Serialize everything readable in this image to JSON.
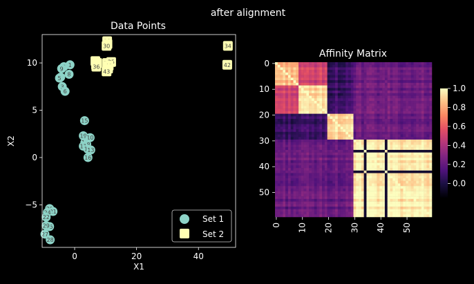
{
  "figure": {
    "suptitle": "after alignment"
  },
  "colors": {
    "background": "#000000",
    "foreground": "#ffffff",
    "set1": "#8dd3c7",
    "set2": "#ffffb3",
    "point_label": "#444444"
  },
  "chart_data": [
    {
      "type": "scatter",
      "title": "Data Points",
      "xlabel": "X1",
      "ylabel": "X2",
      "xlim": [
        -10.5,
        52
      ],
      "ylim": [
        -9.5,
        13
      ],
      "xticks": [
        0,
        20,
        40
      ],
      "yticks": [
        -5,
        0,
        5,
        10
      ],
      "legend_position": "lower-right",
      "series": [
        {
          "name": "Set 1",
          "marker": "circle",
          "points": [
            {
              "label": "1",
              "x": -1.5,
              "y": 9.8
            },
            {
              "label": "0",
              "x": -3.5,
              "y": 9.6
            },
            {
              "label": "9",
              "x": -4.2,
              "y": 9.4
            },
            {
              "label": "8",
              "x": -1.8,
              "y": 8.8
            },
            {
              "label": "2",
              "x": -4.5,
              "y": 8.5
            },
            {
              "label": "5",
              "x": -4.9,
              "y": 8.4
            },
            {
              "label": "3",
              "x": -4.0,
              "y": 7.5
            },
            {
              "label": "6",
              "x": -3.1,
              "y": 7.0
            },
            {
              "label": "15",
              "x": 3.2,
              "y": 3.9
            },
            {
              "label": "19",
              "x": 2.8,
              "y": 2.3
            },
            {
              "label": "10",
              "x": 5.0,
              "y": 2.1
            },
            {
              "label": "14",
              "x": 3.3,
              "y": 1.6
            },
            {
              "label": "18",
              "x": 3.9,
              "y": 1.4
            },
            {
              "label": "11",
              "x": 2.8,
              "y": 1.2
            },
            {
              "label": "17",
              "x": 4.2,
              "y": 0.9
            },
            {
              "label": "13",
              "x": 5.2,
              "y": 0.8
            },
            {
              "label": "16",
              "x": 4.3,
              "y": 0.0
            },
            {
              "label": "20",
              "x": -8.1,
              "y": -5.4
            },
            {
              "label": "21",
              "x": -7.0,
              "y": -5.7
            },
            {
              "label": "24",
              "x": -8.8,
              "y": -5.8
            },
            {
              "label": "22",
              "x": -9.2,
              "y": -6.3
            },
            {
              "label": "25",
              "x": -8.1,
              "y": -7.3
            },
            {
              "label": "29",
              "x": -9.2,
              "y": -7.2
            },
            {
              "label": "27",
              "x": -9.6,
              "y": -8.1
            },
            {
              "label": "28",
              "x": -7.9,
              "y": -8.7
            }
          ]
        },
        {
          "name": "Set 2",
          "marker": "square",
          "points": [
            {
              "label": "33",
              "x": 10.5,
              "y": 12.3
            },
            {
              "label": "31",
              "x": 10.6,
              "y": 12.0
            },
            {
              "label": "30",
              "x": 10.3,
              "y": 11.8
            },
            {
              "label": "34",
              "x": 49.5,
              "y": 11.8
            },
            {
              "label": "39",
              "x": 6.7,
              "y": 10.2
            },
            {
              "label": "37",
              "x": 7.3,
              "y": 10.0
            },
            {
              "label": "38",
              "x": 6.9,
              "y": 9.8
            },
            {
              "label": "36",
              "x": 7.0,
              "y": 9.6
            },
            {
              "label": "32",
              "x": 10.5,
              "y": 10.0
            },
            {
              "label": "35",
              "x": 11.8,
              "y": 10.1
            },
            {
              "label": "40",
              "x": 11.0,
              "y": 9.7
            },
            {
              "label": "41",
              "x": 10.8,
              "y": 9.4
            },
            {
              "label": "43",
              "x": 10.3,
              "y": 9.1
            },
            {
              "label": "42",
              "x": 49.3,
              "y": 9.8
            }
          ]
        }
      ]
    },
    {
      "type": "heatmap",
      "title": "Affinity Matrix",
      "size": 60,
      "xticks": [
        0,
        10,
        20,
        30,
        40,
        50
      ],
      "yticks": [
        0,
        10,
        20,
        30,
        40,
        50
      ],
      "blocks": [
        {
          "rows": [
            0,
            8
          ],
          "cols": [
            0,
            8
          ],
          "value": 0.85
        },
        {
          "rows": [
            0,
            8
          ],
          "cols": [
            9,
            19
          ],
          "value": 0.5
        },
        {
          "rows": [
            9,
            19
          ],
          "cols": [
            0,
            8
          ],
          "value": 0.5
        },
        {
          "rows": [
            9,
            19
          ],
          "cols": [
            9,
            19
          ],
          "value": 0.9
        },
        {
          "rows": [
            20,
            29
          ],
          "cols": [
            20,
            29
          ],
          "value": 0.92
        },
        {
          "rows": [
            0,
            19
          ],
          "cols": [
            20,
            29
          ],
          "value": 0.08
        },
        {
          "rows": [
            20,
            29
          ],
          "cols": [
            0,
            19
          ],
          "value": 0.08
        },
        {
          "rows": [
            0,
            29
          ],
          "cols": [
            30,
            59
          ],
          "value": 0.22
        },
        {
          "rows": [
            30,
            59
          ],
          "cols": [
            0,
            29
          ],
          "value": 0.22
        },
        {
          "rows": [
            30,
            59
          ],
          "cols": [
            30,
            59
          ],
          "value": 0.97
        }
      ],
      "outlier_indices": [
        34,
        42
      ],
      "outlier_value": -0.05,
      "colorbar": {
        "vmin": -0.15,
        "vmax": 1.0,
        "ticks": [
          0.0,
          0.2,
          0.4,
          0.6,
          0.8,
          1.0
        ],
        "tick_labels": [
          "0.0",
          "0.2",
          "0.4",
          "0.6",
          "0.8",
          "1.0"
        ],
        "colormap": "magma"
      }
    }
  ]
}
